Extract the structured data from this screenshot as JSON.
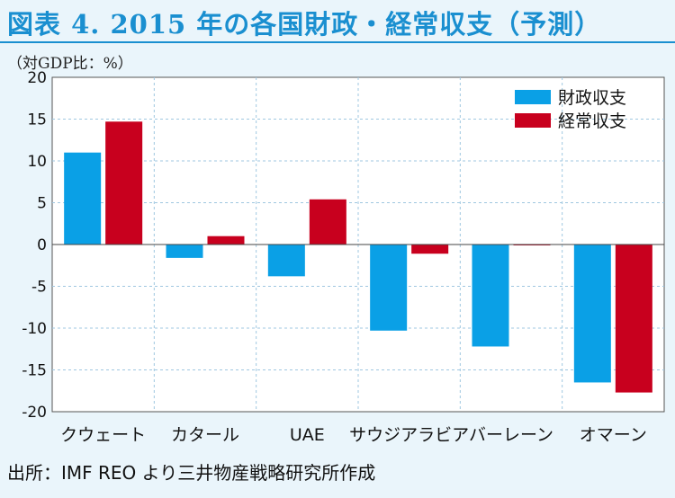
{
  "title": "図表 4. 2015 年の各国財政・経常収支（予測）",
  "unit_note": "（対GDP比：%）",
  "source": "出所：IMF REO より三井物産戦略研究所作成",
  "chart_data": {
    "type": "bar",
    "categories": [
      "クウェート",
      "カタール",
      "UAE",
      "サウジアラビア",
      "バーレーン",
      "オマーン"
    ],
    "series": [
      {
        "name": "財政収支",
        "color": "#0aa0e6",
        "values": [
          11.0,
          -1.6,
          -3.8,
          -10.3,
          -12.2,
          -16.5
        ]
      },
      {
        "name": "経常収支",
        "color": "#c8001e",
        "values": [
          14.7,
          1.0,
          5.4,
          -1.1,
          -0.1,
          -17.7
        ]
      }
    ],
    "ylim": [
      -20,
      20
    ],
    "yticks": [
      20,
      15,
      10,
      5,
      0,
      -5,
      -10,
      -15,
      -20
    ],
    "grid": true,
    "legend_position": "top-right"
  }
}
